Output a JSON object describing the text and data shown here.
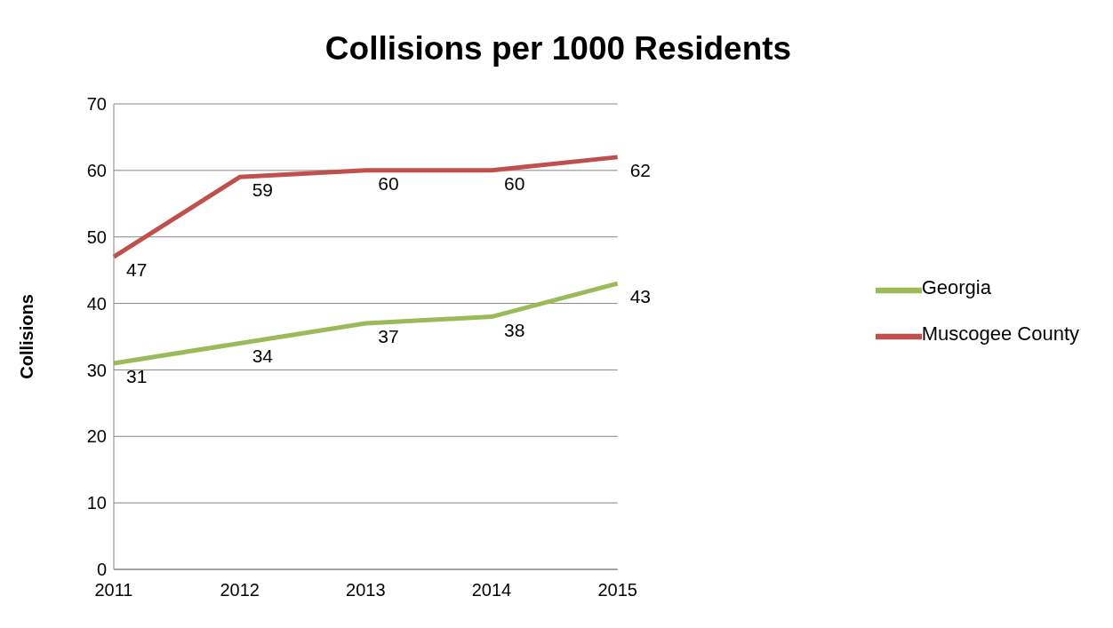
{
  "chart_data": {
    "type": "line",
    "title": "Collisions per 1000 Residents",
    "ylabel": "Collisions",
    "categories": [
      "2011",
      "2012",
      "2013",
      "2014",
      "2015"
    ],
    "series": [
      {
        "name": "Muscogee County",
        "color": "#c0504d",
        "values": [
          47,
          59,
          60,
          60,
          62
        ]
      },
      {
        "name": "Georgia",
        "color": "#9bbb59",
        "values": [
          31,
          34,
          37,
          38,
          43
        ]
      }
    ],
    "ylim": [
      0,
      70
    ],
    "yticks": [
      0,
      10,
      20,
      30,
      40,
      50,
      60,
      70
    ],
    "grid": "y",
    "legend": "right",
    "marker": "none",
    "line_style": "solid",
    "data_labels": true
  }
}
